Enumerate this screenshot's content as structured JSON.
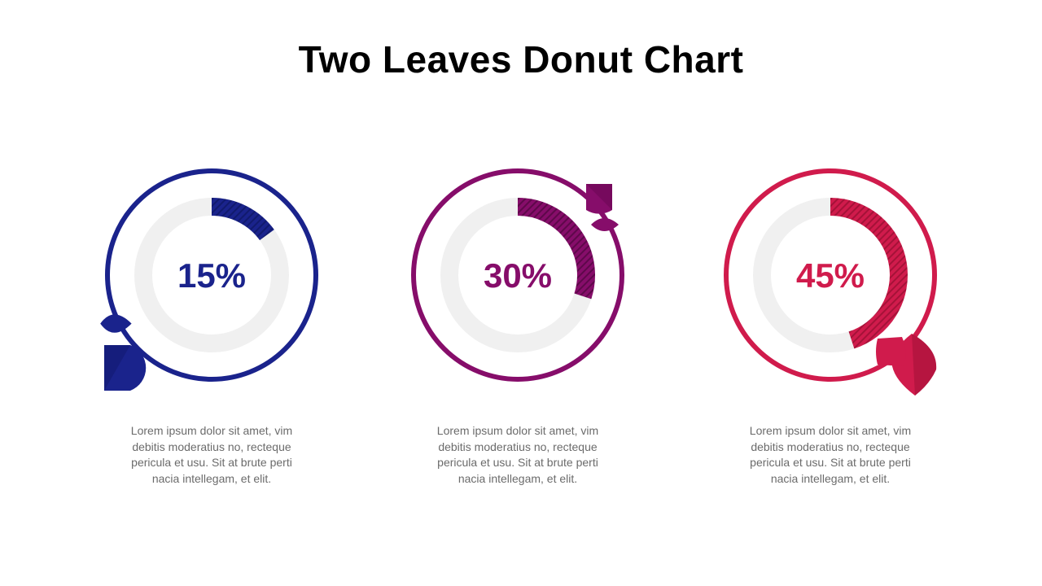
{
  "title": "Two Leaves Donut Chart",
  "chart_data": {
    "type": "donut",
    "items": [
      {
        "label": "15%",
        "value": 15,
        "color": "#1a238c",
        "description": "Lorem ipsum dolor sit amet, vim debitis moderatius no, recteque pericula et usu. Sit at brute perti nacia intellegam, et elit."
      },
      {
        "label": "30%",
        "value": 30,
        "color": "#860d6a",
        "description": "Lorem ipsum dolor sit amet, vim debitis moderatius no, recteque pericula et usu. Sit at brute perti nacia intellegam, et elit."
      },
      {
        "label": "45%",
        "value": 45,
        "color": "#d01b4c",
        "description": "Lorem ipsum dolor sit amet, vim debitis moderatius no, recteque pericula et usu. Sit at brute perti nacia intellegam, et elit."
      }
    ],
    "track_color": "#f0f0f0",
    "max": 100
  }
}
